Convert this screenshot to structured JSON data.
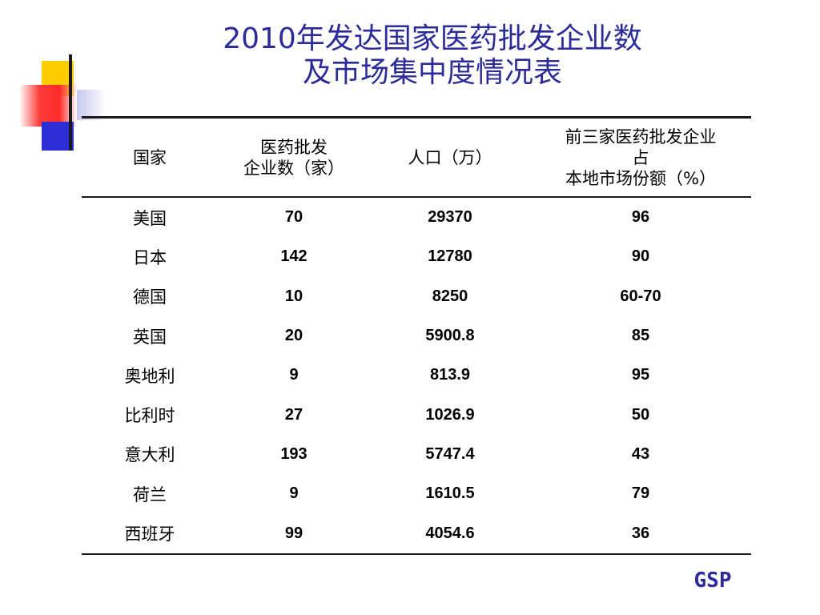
{
  "slide": {
    "title_line1": "2010年发达国家医药批发企业数",
    "title_line2": "及市场集中度情况表",
    "footer": "GSP"
  },
  "table": {
    "headers": [
      [
        "国家"
      ],
      [
        "医药批发",
        "企业数（家）"
      ],
      [
        "人口（万）"
      ],
      [
        "前三家医药批发企业",
        "占",
        "本地市场份额（%）"
      ]
    ],
    "rows": [
      [
        "美国",
        "70",
        "29370",
        "96"
      ],
      [
        "日本",
        "142",
        "12780",
        "90"
      ],
      [
        "德国",
        "10",
        "8250",
        "60-70"
      ],
      [
        "英国",
        "20",
        "5900.8",
        "85"
      ],
      [
        "奥地利",
        "9",
        "813.9",
        "95"
      ],
      [
        "比利时",
        "27",
        "1026.9",
        "50"
      ],
      [
        "意大利",
        "193",
        "5747.4",
        "43"
      ],
      [
        "荷兰",
        "9",
        "1610.5",
        "79"
      ],
      [
        "西班牙",
        "99",
        "4054.6",
        "36"
      ]
    ]
  },
  "colors": {
    "title": "#2b2b9a",
    "deco_yellow": "#ffcc00",
    "deco_red": "#ff2a2a",
    "deco_blue": "#2e2ed6"
  }
}
